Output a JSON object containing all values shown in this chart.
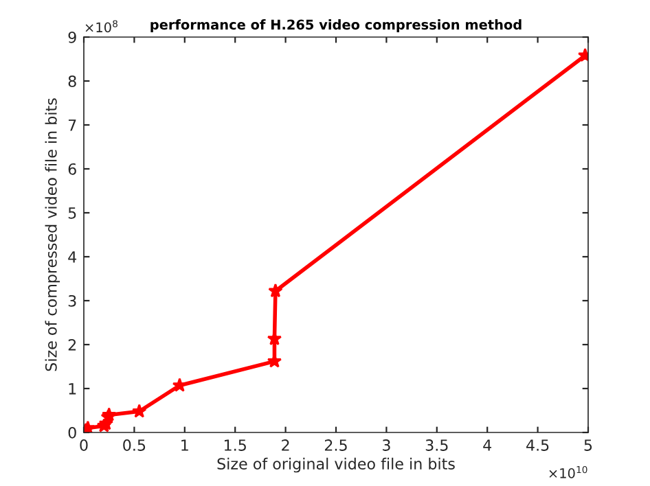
{
  "chart_data": {
    "type": "line",
    "title": "performance of H.265 video compression method",
    "xlabel": "Size of original video file in bits",
    "ylabel": "Size of compressed video file in bits",
    "annotations": [
      "×10$^{10}$",
      "×10$^{8}$"
    ],
    "series": [
      {
        "color": "#ff0000",
        "x": [
          0.02,
          0.04,
          0.2,
          0.22,
          0.24,
          0.25,
          0.55,
          0.95,
          1.89,
          1.89,
          1.9,
          4.97
        ],
        "values": [
          0.05,
          0.1,
          0.15,
          0.2,
          0.35,
          0.4,
          0.48,
          1.07,
          1.62,
          2.13,
          3.22,
          8.58
        ]
      }
    ],
    "xlim": [
      0,
      5
    ],
    "ylim": [
      0,
      9
    ],
    "xticks": [
      0,
      0.5,
      1,
      1.5,
      2,
      2.5,
      3,
      3.5,
      4,
      4.5,
      5
    ],
    "yticks": [
      0,
      1,
      2,
      3,
      4,
      5,
      6,
      7,
      8,
      9
    ],
    "grid": false,
    "legend": false,
    "marker": "star",
    "line_style": "solid"
  }
}
